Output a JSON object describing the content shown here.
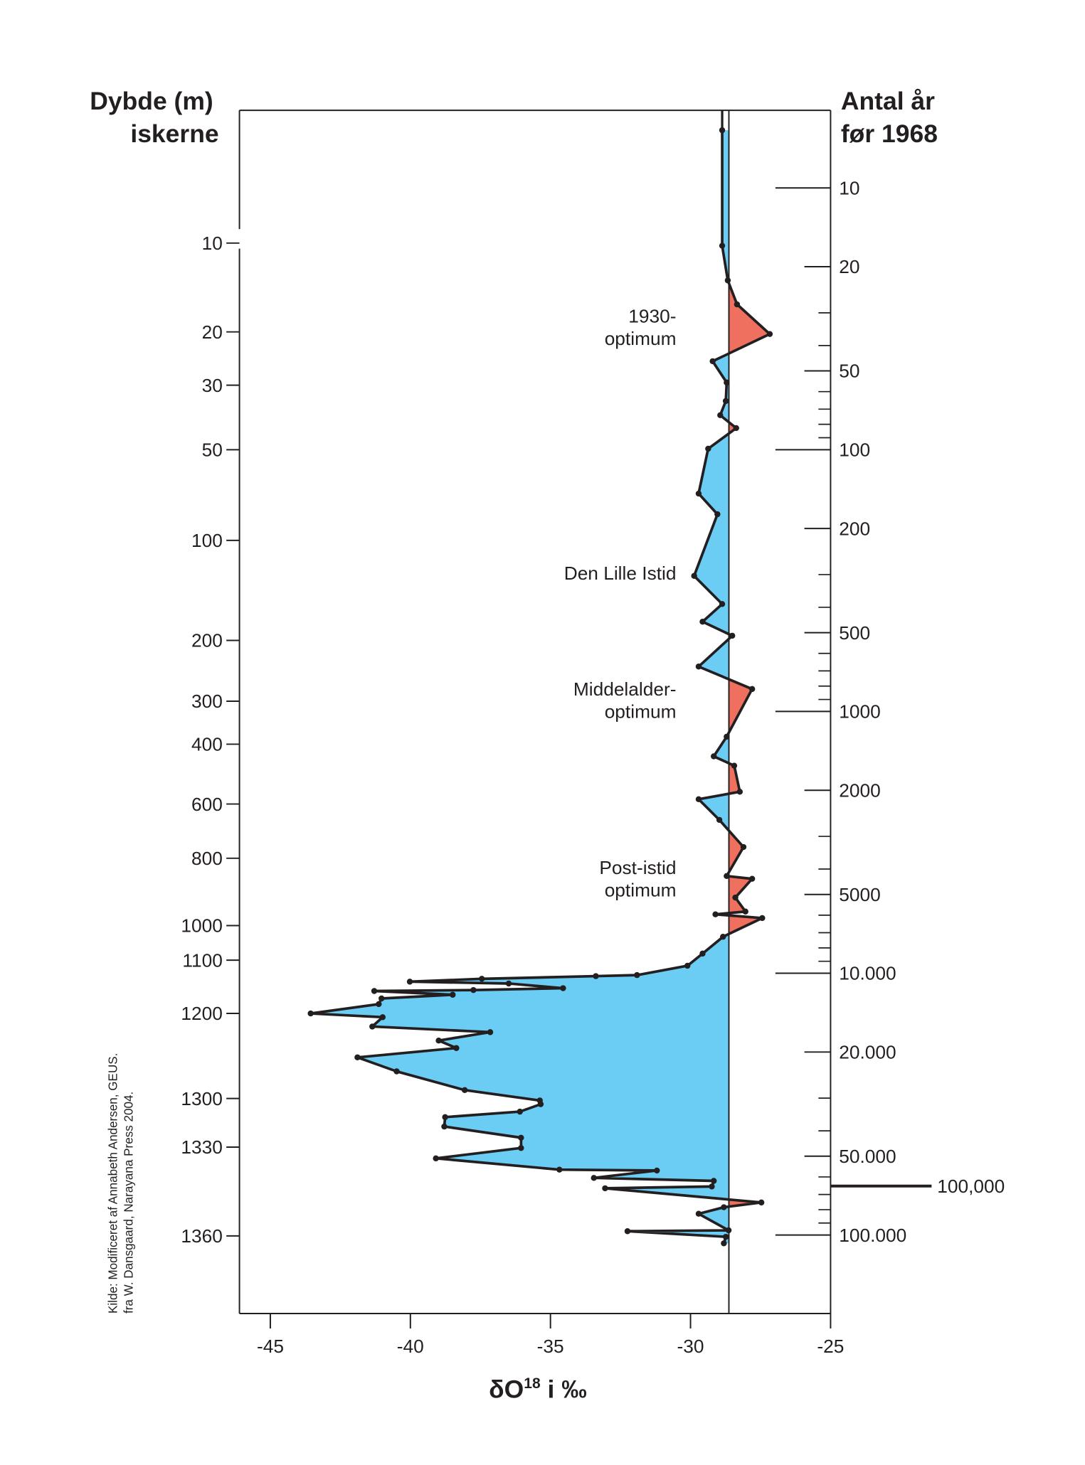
{
  "chart_data": {
    "type": "area",
    "left_axis_title": [
      "Dybde (m)",
      "iskerne"
    ],
    "right_axis_title": [
      "Antal år",
      "før 1968"
    ],
    "xlabel": {
      "main": "δO",
      "sup": "18",
      "rest": " i ‰"
    },
    "xlim": [
      -46.1,
      -25
    ],
    "x_ticks": [
      "-45",
      "-40",
      "-35",
      "-30",
      "-25"
    ],
    "x_tick_values": [
      -45,
      -40,
      -35,
      -30,
      -25
    ],
    "reference_value": -28.63,
    "depth_ticks": [
      "10",
      "20",
      "30",
      "50",
      "100",
      "200",
      "300",
      "400",
      "600",
      "800",
      "1000",
      "1100",
      "1200",
      "1300",
      "1330",
      "1360"
    ],
    "depth_tick_values": [
      10,
      20,
      30,
      50,
      100,
      200,
      300,
      400,
      600,
      800,
      1000,
      1100,
      1200,
      1300,
      1330,
      1360
    ],
    "age_axis": {
      "scale": "log",
      "range": [
        5,
        200000
      ],
      "labeled_ticks": [
        {
          "value": 10,
          "label": "10"
        },
        {
          "value": 20,
          "label": "20"
        },
        {
          "value": 50,
          "label": "50"
        },
        {
          "value": 100,
          "label": "100"
        },
        {
          "value": 200,
          "label": "200"
        },
        {
          "value": 500,
          "label": "500"
        },
        {
          "value": 1000,
          "label": "1000"
        },
        {
          "value": 2000,
          "label": "2000"
        },
        {
          "value": 5000,
          "label": "5000"
        },
        {
          "value": 10000,
          "label": "10.000"
        },
        {
          "value": 20000,
          "label": "20.000"
        },
        {
          "value": 50000,
          "label": "50.000"
        },
        {
          "value": 100000,
          "label": "100.000"
        }
      ],
      "marker": {
        "label": "100,000",
        "value": 65000
      }
    },
    "colors": {
      "below_reference": "#6ccdf4",
      "above_reference": "#f07060",
      "line": "#231f20"
    },
    "series": [
      {
        "points": [
          [
            -28.87,
            1.5
          ],
          [
            -28.87,
            10.3
          ],
          [
            -28.67,
            14.2
          ],
          [
            -28.34,
            16.9
          ],
          [
            -27.17,
            20.4
          ],
          [
            -29.21,
            25.5
          ],
          [
            -28.71,
            29.5
          ],
          [
            -28.74,
            34.9
          ],
          [
            -28.94,
            39.3
          ],
          [
            -28.37,
            43.3
          ],
          [
            -29.37,
            49.7
          ],
          [
            -29.71,
            74.2
          ],
          [
            -29.04,
            85.6
          ],
          [
            -29.87,
            135.5
          ],
          [
            -28.87,
            163.6
          ],
          [
            -29.57,
            181.3
          ],
          [
            -28.51,
            195.3
          ],
          [
            -29.71,
            243
          ],
          [
            -27.8,
            280
          ],
          [
            -28.71,
            382.6
          ],
          [
            -29.17,
            440.6
          ],
          [
            -28.44,
            471.9
          ],
          [
            -28.24,
            559
          ],
          [
            -29.71,
            584
          ],
          [
            -28.97,
            658.6
          ],
          [
            -28.11,
            758.6
          ],
          [
            -28.71,
            852.8
          ],
          [
            -27.8,
            861
          ],
          [
            -28.4,
            916.7
          ],
          [
            -28.04,
            958.3
          ],
          [
            -29.11,
            966.7
          ],
          [
            -27.44,
            977.8
          ],
          [
            -28.84,
            1032.4
          ],
          [
            -29.57,
            1081
          ],
          [
            -30.11,
            1110.5
          ],
          [
            -31.91,
            1128
          ],
          [
            -33.38,
            1130
          ],
          [
            -37.45,
            1135
          ],
          [
            -40.02,
            1140.4
          ],
          [
            -36.49,
            1143.9
          ],
          [
            -34.55,
            1152.6
          ],
          [
            -37.75,
            1156.1
          ],
          [
            -41.29,
            1157.9
          ],
          [
            -38.49,
            1164.9
          ],
          [
            -41.03,
            1171.9
          ],
          [
            -41.13,
            1182.5
          ],
          [
            -43.56,
            1200
          ],
          [
            -40.99,
            1204.4
          ],
          [
            -41.36,
            1215.4
          ],
          [
            -37.15,
            1222
          ],
          [
            -38.99,
            1231.9
          ],
          [
            -38.36,
            1240.7
          ],
          [
            -41.89,
            1251.6
          ],
          [
            -40.49,
            1268.1
          ],
          [
            -38.06,
            1290.1
          ],
          [
            -35.38,
            1301.2
          ],
          [
            -35.35,
            1303.5
          ],
          [
            -36.09,
            1308.1
          ],
          [
            -38.76,
            1311.5
          ],
          [
            -38.79,
            1317.3
          ],
          [
            -36.05,
            1324.2
          ],
          [
            -36.05,
            1330.3
          ],
          [
            -39.09,
            1333.8
          ],
          [
            -34.68,
            1337.6
          ],
          [
            -31.2,
            1337.9
          ],
          [
            -33.45,
            1340.4
          ],
          [
            -29.17,
            1341.4
          ],
          [
            -29.24,
            1343.3
          ],
          [
            -33.05,
            1343.9
          ],
          [
            -27.47,
            1348.7
          ],
          [
            -28.81,
            1350.3
          ],
          [
            -29.71,
            1352.5
          ],
          [
            -28.64,
            1358.1
          ],
          [
            -32.25,
            1358.4
          ],
          [
            -28.74,
            1360.3
          ],
          [
            -28.81,
            1362.5
          ]
        ]
      }
    ],
    "annotations": [
      {
        "lines": [
          "1930-",
          "optimum"
        ],
        "depth": 20
      },
      {
        "lines": [
          "Den Lille Istid"
        ],
        "depth": 120
      },
      {
        "lines": [
          "Middelalder-",
          "optimum"
        ],
        "depth": 300
      },
      {
        "lines": [
          "Post-istid",
          "optimum"
        ],
        "depth": 900
      }
    ],
    "source": [
      "Kilde: Modificeret af Annabeth Andersen, GEUS.",
      "fra W. Dansgaard, Narayana Press 2004."
    ]
  }
}
